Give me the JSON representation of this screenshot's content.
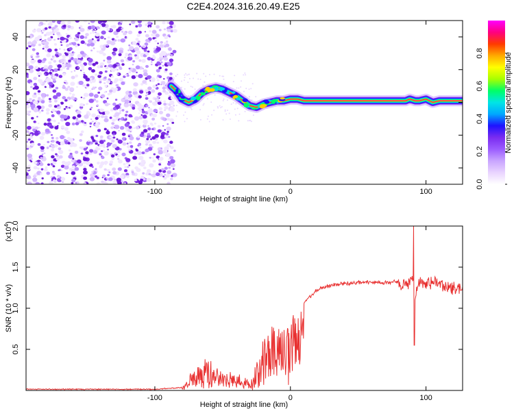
{
  "title": "C2E4.2024.316.20.49.E25",
  "chart_data": [
    {
      "type": "heatmap",
      "xlabel": "Height of straight line (km)",
      "ylabel": "Frequency (Hz)",
      "xlim": [
        -195,
        127
      ],
      "ylim": [
        -50,
        50
      ],
      "xticks": [
        -100,
        0,
        100
      ],
      "xtick_labels": [
        "-100",
        "0",
        "100"
      ],
      "yticks": [
        -40,
        -20,
        0,
        20,
        40
      ],
      "ytick_labels": [
        "-40",
        "-20",
        "0",
        "20",
        "40"
      ],
      "colorbar": {
        "label": "Normalized spectral amplitude",
        "range": [
          0,
          1
        ],
        "ticks": [
          0,
          0.2,
          0.4,
          0.6,
          0.8
        ],
        "tick_labels": [
          "0.0",
          "0.2",
          "0.4",
          "0.6",
          "0.8"
        ],
        "colors": [
          "#ffffff",
          "#e9d4ff",
          "#c9a5ff",
          "#9b5cff",
          "#7a2cf0",
          "#1e12ff",
          "#00a8ff",
          "#00e5e5",
          "#00ff66",
          "#a8ff00",
          "#ffff00",
          "#ffaa00",
          "#ff3a00",
          "#ff0080",
          "#ff00ff"
        ]
      },
      "noise_region_xmax": -85,
      "ridge": {
        "x": [
          -88,
          -84,
          -80,
          -75,
          -70,
          -65,
          -60,
          -55,
          -50,
          -45,
          -40,
          -35,
          -30,
          -25,
          -20,
          -15,
          -10,
          -5,
          0,
          5,
          10,
          20,
          30,
          40,
          50,
          60,
          70,
          80,
          85,
          88,
          92,
          95,
          100,
          105,
          110,
          115,
          120,
          127
        ],
        "y": [
          10,
          7,
          2,
          0,
          2,
          6,
          8,
          9,
          8,
          6,
          4,
          1,
          -2,
          -3,
          -1,
          0,
          1,
          1,
          2,
          2,
          1,
          1,
          1,
          1,
          1,
          1,
          1,
          1,
          1,
          2,
          1,
          1,
          2,
          0,
          1,
          1,
          1,
          1
        ]
      }
    },
    {
      "type": "line",
      "xlabel": "Height of straight line (km)",
      "ylabel": "SNR (10 * v/v)",
      "scale_note": "(x10",
      "scale_exp": "4",
      "xlim": [
        -195,
        127
      ],
      "ylim": [
        0,
        2.0
      ],
      "xticks": [
        -100,
        0,
        100
      ],
      "xtick_labels": [
        "-100",
        "0",
        "100"
      ],
      "yticks": [
        0.5,
        1.0,
        1.5,
        2.0
      ],
      "ytick_labels": [
        "0.5",
        "1.0",
        "1.5",
        "2.0"
      ],
      "line_color": "#e83030",
      "envelope": {
        "x": [
          -195,
          -100,
          -80,
          -75,
          -70,
          -65,
          -60,
          -55,
          -50,
          -45,
          -40,
          -35,
          -30,
          -25,
          -22,
          -20,
          -15,
          -10,
          -5,
          0,
          5,
          10,
          20,
          30,
          40,
          50,
          60,
          70,
          80,
          85,
          88,
          90,
          92,
          95,
          100,
          105,
          110,
          115,
          120,
          127
        ],
        "y": [
          0.02,
          0.02,
          0.04,
          0.15,
          0.3,
          0.35,
          0.4,
          0.3,
          0.25,
          0.22,
          0.2,
          0.15,
          0.12,
          0.3,
          0.55,
          0.65,
          0.7,
          0.75,
          0.8,
          0.95,
          1.0,
          1.1,
          1.25,
          1.3,
          1.32,
          1.33,
          1.33,
          1.33,
          1.34,
          1.36,
          1.38,
          1.45,
          1.2,
          1.38,
          1.35,
          1.38,
          1.36,
          1.34,
          1.3,
          1.28
        ]
      },
      "peak": {
        "x": 91,
        "y": 2.0
      },
      "dip": {
        "x": 91,
        "y": 0.55
      }
    }
  ]
}
